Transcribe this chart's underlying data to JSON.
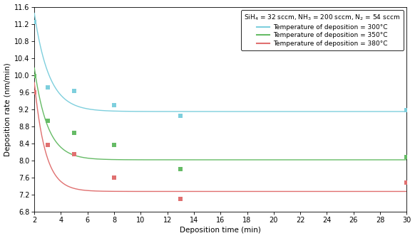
{
  "xlabel": "Deposition time (min)",
  "ylabel": "Deposition rate (nm/min)",
  "legend_title": "SiH$_4$ = 32 sccm, NH$_3$ = 200 sccm, N$_2$ = 54 sccm",
  "xlim": [
    2,
    30
  ],
  "ylim": [
    6.8,
    11.6
  ],
  "xticks": [
    2,
    4,
    6,
    8,
    10,
    12,
    14,
    16,
    18,
    20,
    22,
    24,
    26,
    28,
    30
  ],
  "yticks": [
    6.8,
    7.2,
    7.6,
    8.0,
    8.4,
    8.8,
    9.2,
    9.6,
    10.0,
    10.4,
    10.8,
    11.2,
    11.6
  ],
  "series": [
    {
      "label": "Temperature of deposition = 300°C",
      "color": "#7ecfdd",
      "scatter_x": [
        2,
        3,
        5,
        8,
        13,
        30
      ],
      "scatter_y": [
        11.25,
        9.72,
        9.63,
        9.3,
        9.05,
        9.18
      ],
      "fit_params": {
        "a": 2.3,
        "b": -0.9,
        "c": 9.15
      }
    },
    {
      "label": "Temperature of deposition = 350°C",
      "color": "#66bb66",
      "scatter_x": [
        2,
        3,
        5,
        8,
        13,
        30
      ],
      "scatter_y": [
        9.98,
        8.93,
        8.65,
        8.36,
        7.8,
        8.08
      ],
      "fit_params": {
        "a": 2.15,
        "b": -1.0,
        "c": 8.02
      }
    },
    {
      "label": "Temperature of deposition = 380°C",
      "color": "#e07070",
      "scatter_x": [
        2,
        3,
        5,
        8,
        13,
        30
      ],
      "scatter_y": [
        9.6,
        8.36,
        8.15,
        7.6,
        7.1,
        7.48
      ],
      "fit_params": {
        "a": 2.55,
        "b": -1.2,
        "c": 7.28
      }
    }
  ],
  "background_color": "#ffffff",
  "marker": "s",
  "marker_size": 25
}
